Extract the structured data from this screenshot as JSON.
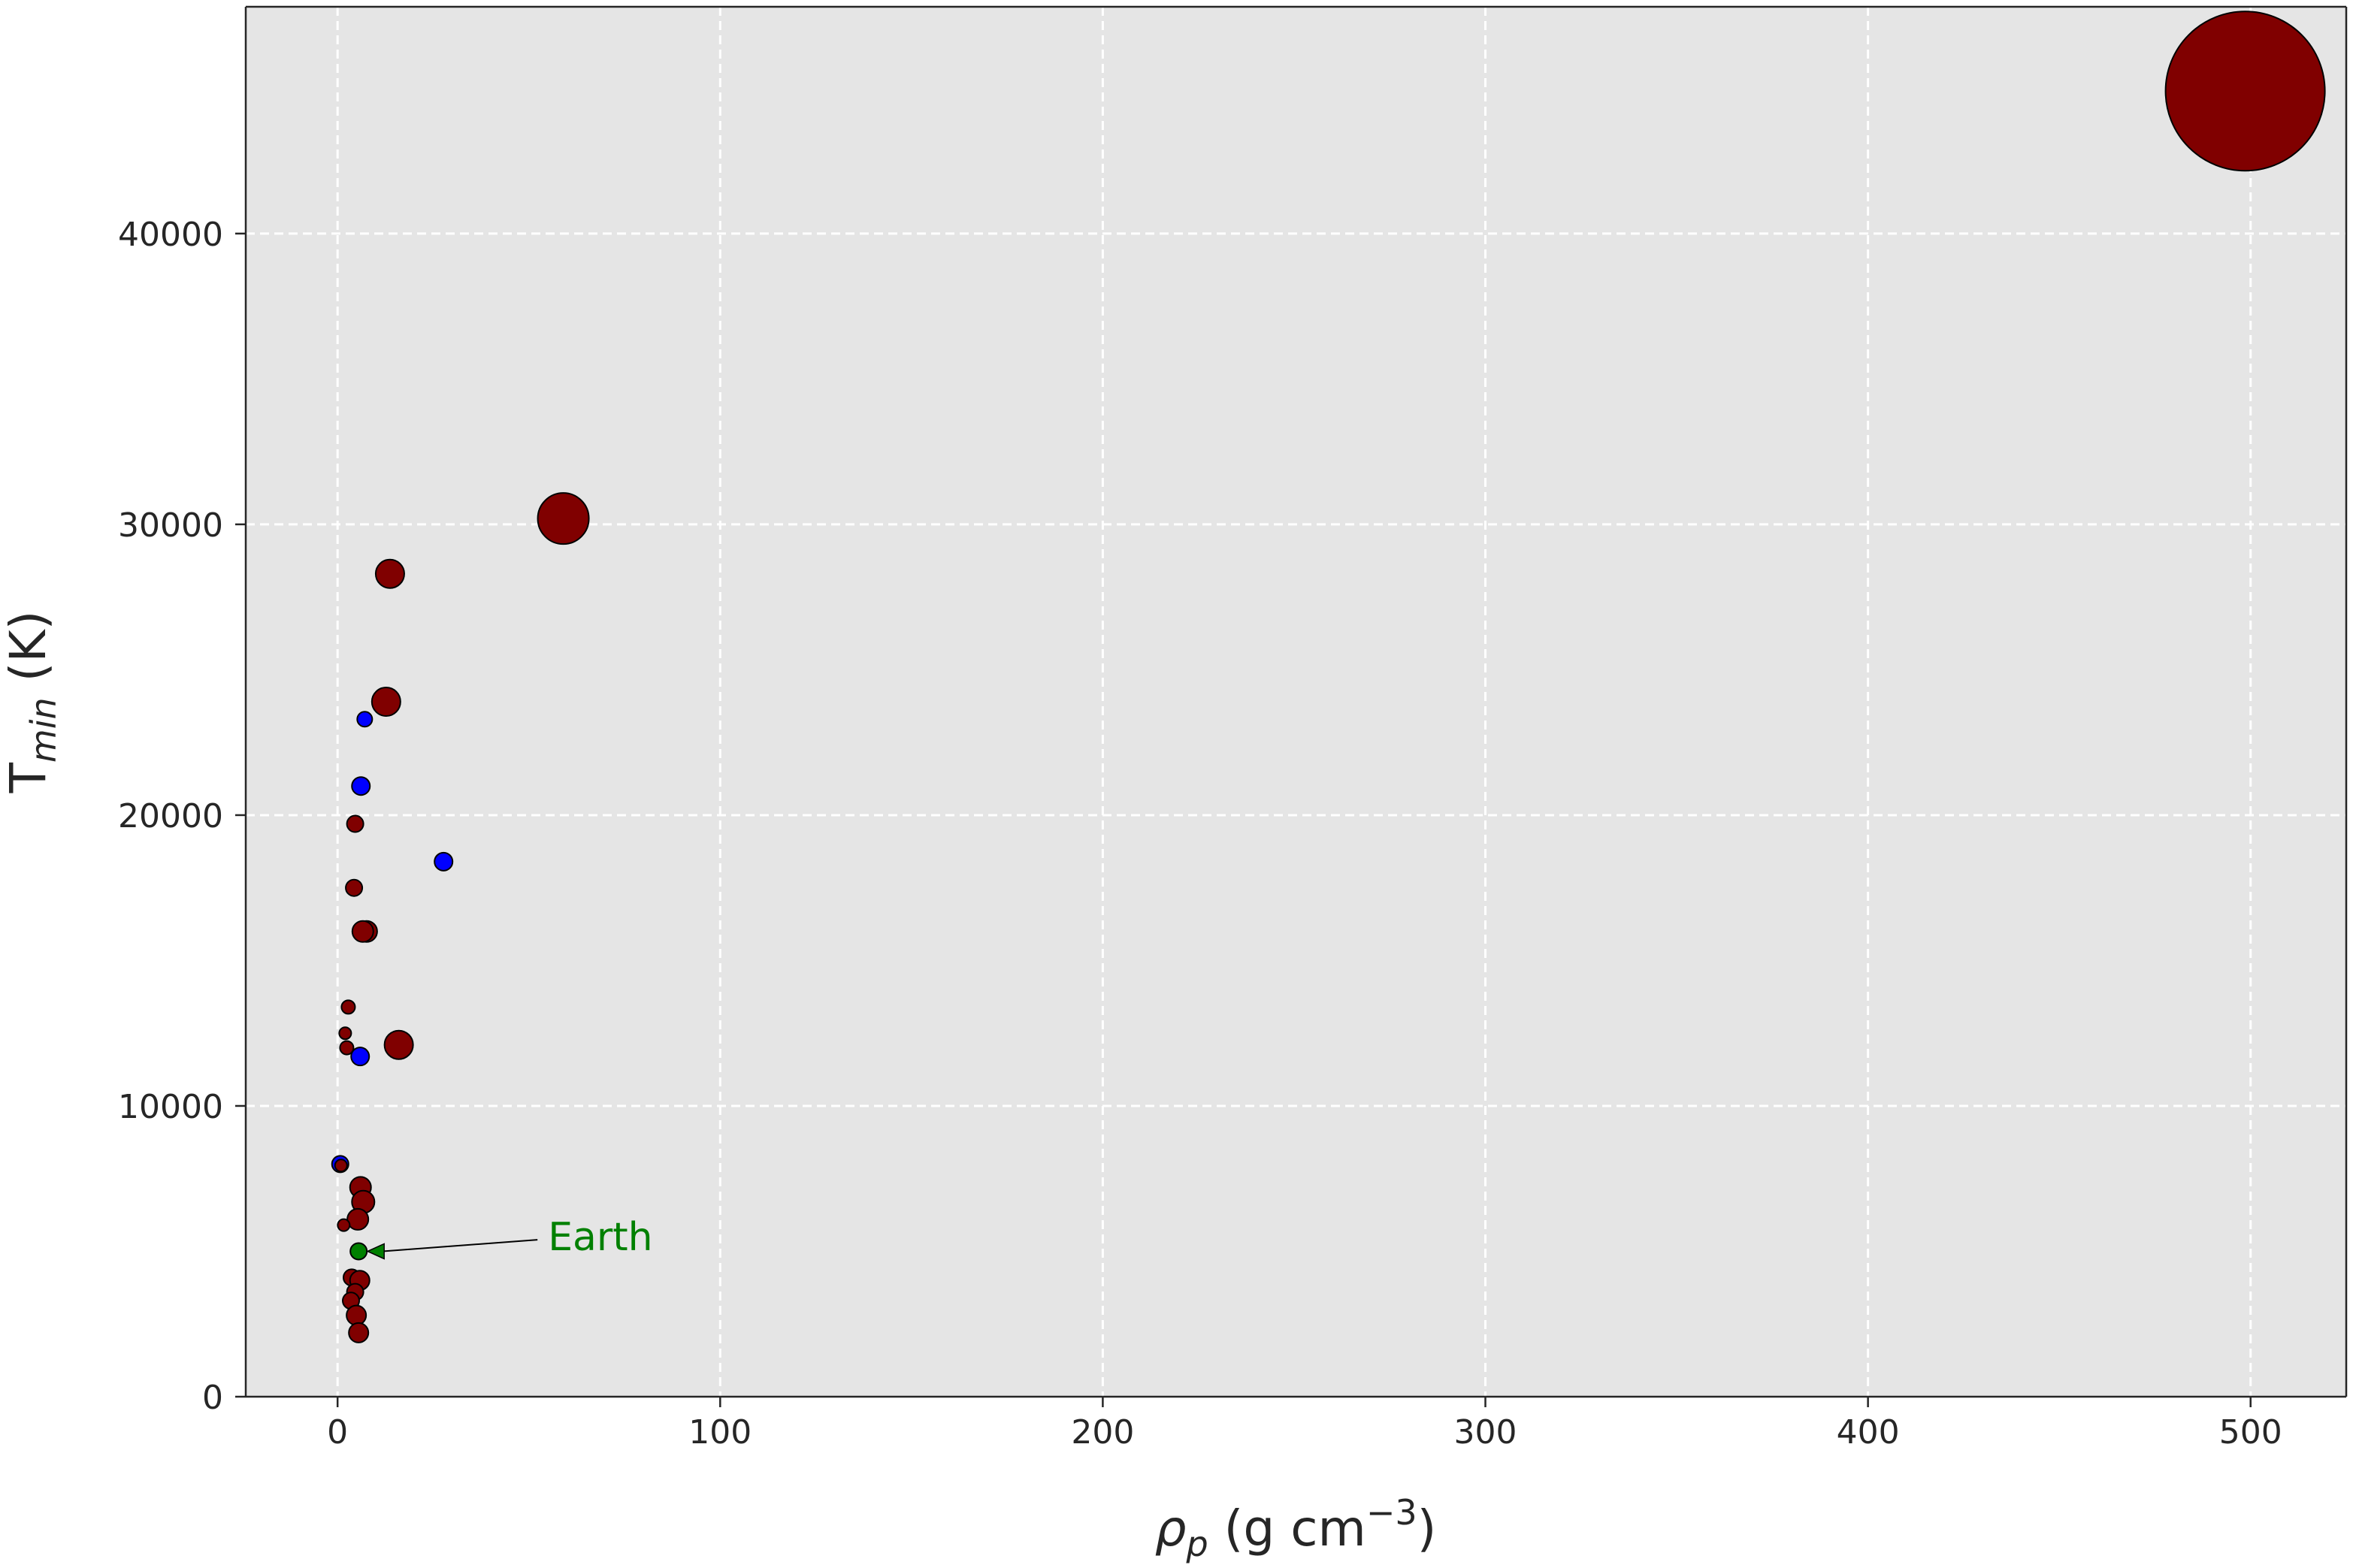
{
  "chart_data": {
    "type": "scatter",
    "title": "",
    "xlabel": {
      "main": "ρ",
      "sub": "p",
      "rest": " (g cm",
      "sup": "−3",
      "close": ")"
    },
    "ylabel": {
      "main": "T",
      "sub": "min",
      "rest": " (K)"
    },
    "xlim": [
      -24,
      525
    ],
    "ylim": [
      0,
      47800
    ],
    "xticks": [
      0,
      100,
      200,
      300,
      400,
      500
    ],
    "yticks": [
      0,
      10000,
      20000,
      30000,
      40000
    ],
    "grid": true,
    "colors": {
      "background": "#e5e5e5",
      "grid": "#ffffff",
      "red": "#800000",
      "blue": "#0000ff",
      "green": "#008000",
      "edge": "#000000",
      "text": "#262626"
    },
    "points": [
      {
        "x": 498.6,
        "y": 44900,
        "r": 53,
        "color": "red"
      },
      {
        "x": 59.0,
        "y": 30200,
        "r": 17,
        "color": "red"
      },
      {
        "x": 13.7,
        "y": 28300,
        "r": 9.5,
        "color": "red"
      },
      {
        "x": 12.7,
        "y": 23900,
        "r": 9.5,
        "color": "red"
      },
      {
        "x": 7.1,
        "y": 23300,
        "r": 5,
        "color": "blue"
      },
      {
        "x": 6.1,
        "y": 21000,
        "r": 6,
        "color": "blue"
      },
      {
        "x": 4.6,
        "y": 19700,
        "r": 5.5,
        "color": "red"
      },
      {
        "x": 27.7,
        "y": 18400,
        "r": 6,
        "color": "blue"
      },
      {
        "x": 4.3,
        "y": 17500,
        "r": 5.5,
        "color": "red"
      },
      {
        "x": 7.6,
        "y": 16000,
        "r": 7,
        "color": "red"
      },
      {
        "x": 6.6,
        "y": 16000,
        "r": 7,
        "color": "red"
      },
      {
        "x": 2.8,
        "y": 13400,
        "r": 4.5,
        "color": "red"
      },
      {
        "x": 2.0,
        "y": 12500,
        "r": 4,
        "color": "red"
      },
      {
        "x": 2.4,
        "y": 12000,
        "r": 4.5,
        "color": "red"
      },
      {
        "x": 16.0,
        "y": 12100,
        "r": 9.5,
        "color": "red"
      },
      {
        "x": 5.9,
        "y": 11700,
        "r": 6,
        "color": "blue"
      },
      {
        "x": 0.7,
        "y": 8000,
        "r": 5.5,
        "color": "blue"
      },
      {
        "x": 0.9,
        "y": 7950,
        "r": 4,
        "color": "red"
      },
      {
        "x": 6.0,
        "y": 7200,
        "r": 7,
        "color": "red"
      },
      {
        "x": 6.7,
        "y": 6700,
        "r": 7.5,
        "color": "red"
      },
      {
        "x": 5.3,
        "y": 6100,
        "r": 7,
        "color": "red"
      },
      {
        "x": 1.6,
        "y": 5900,
        "r": 4,
        "color": "red"
      },
      {
        "x": 5.5,
        "y": 5000,
        "r": 5.5,
        "color": "green"
      },
      {
        "x": 3.7,
        "y": 4100,
        "r": 5.5,
        "color": "red"
      },
      {
        "x": 5.8,
        "y": 4000,
        "r": 6.5,
        "color": "red"
      },
      {
        "x": 4.6,
        "y": 3600,
        "r": 5.5,
        "color": "red"
      },
      {
        "x": 3.5,
        "y": 3300,
        "r": 5.5,
        "color": "red"
      },
      {
        "x": 4.9,
        "y": 2800,
        "r": 6.5,
        "color": "red"
      },
      {
        "x": 5.5,
        "y": 2200,
        "r": 6.5,
        "color": "red"
      }
    ],
    "annotations": [
      {
        "text": "Earth",
        "x": 5.5,
        "y": 5000,
        "text_x": 55,
        "text_y": 5500,
        "color": "green"
      }
    ]
  }
}
